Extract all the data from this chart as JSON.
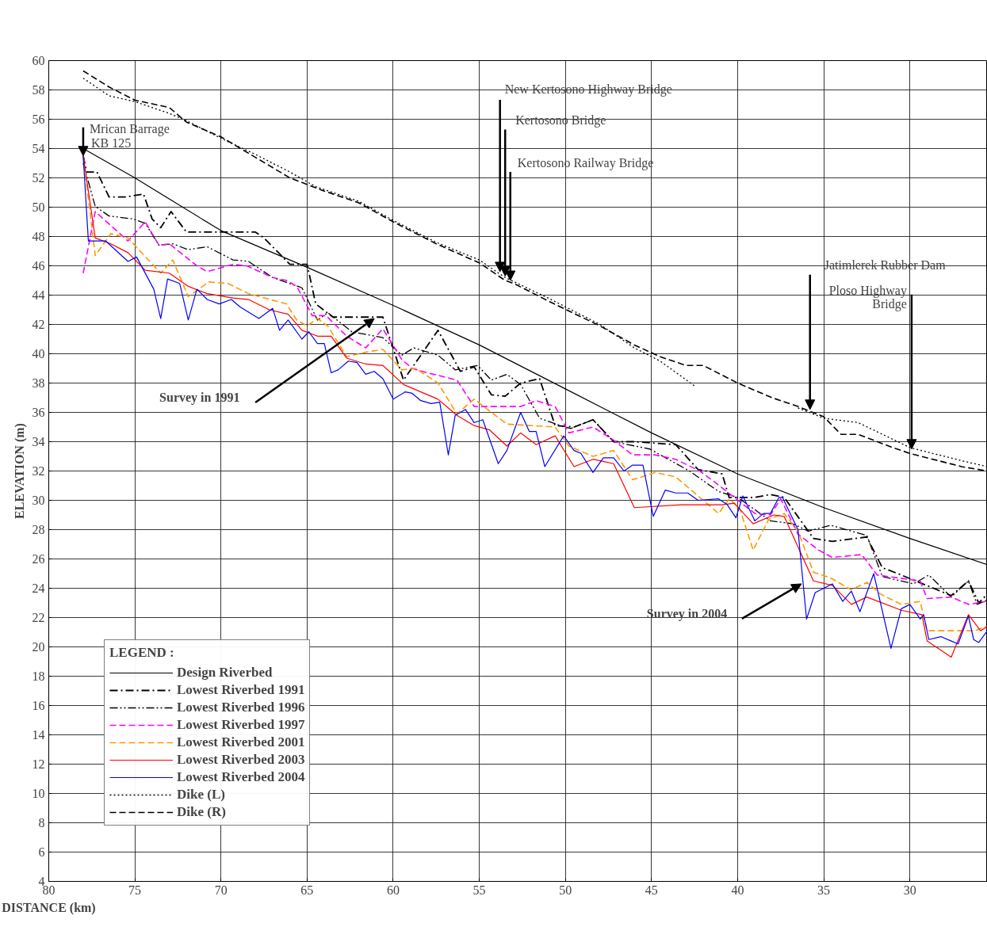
{
  "chart_data": {
    "type": "line",
    "xlabel": "DISTANCE (km)",
    "ylabel": "ELEVATION (m)",
    "legend_title": "LEGEND :",
    "xlim": [
      80,
      25.5
    ],
    "ylim": [
      4,
      60
    ],
    "xticks": [
      80,
      75,
      70,
      65,
      60,
      55,
      50,
      45,
      40,
      35,
      30
    ],
    "yticks": [
      4,
      6,
      8,
      10,
      12,
      14,
      16,
      18,
      20,
      22,
      24,
      26,
      28,
      30,
      32,
      34,
      36,
      38,
      40,
      42,
      44,
      46,
      48,
      50,
      52,
      54,
      56,
      58,
      60
    ],
    "grid": true,
    "legend": "bottom left",
    "marker": "none",
    "series": [
      {
        "name": "Design Riverbed",
        "color": "#000000",
        "line_style": "solid",
        "x": [
          78,
          75,
          70,
          65,
          60,
          55,
          50,
          45,
          40,
          35,
          30,
          25.5
        ],
        "values": [
          54,
          52,
          48.4,
          45.9,
          43.3,
          40.6,
          37.6,
          34.6,
          31.8,
          29.5,
          27.4,
          25.6
        ]
      },
      {
        "name": "Lowest Riverbed 1991",
        "color": "#000000",
        "line_style": "dashdot",
        "x": [
          78,
          77.8,
          77.2,
          76.5,
          75.5,
          74.5,
          74,
          73.5,
          72.9,
          72,
          68,
          67.5,
          66,
          65,
          64.5,
          63.5,
          60.6,
          59.4,
          57.4,
          56.1,
          55.3,
          54.3,
          53.5,
          52.6,
          51.5,
          50.6,
          49.5,
          48.4,
          47.2,
          46,
          43.6,
          42.3,
          40.9,
          40.5,
          39,
          38.1,
          37.3,
          35.6,
          34.5,
          32.5,
          31.6,
          30.7,
          27.6,
          26.6,
          26,
          25.5
        ],
        "values": [
          53.5,
          52.4,
          52.4,
          50.7,
          50.7,
          50.9,
          49.2,
          48.6,
          49.7,
          48.3,
          48.3,
          47.9,
          46.1,
          46.1,
          43.4,
          42.5,
          42.5,
          38.2,
          41.6,
          38.8,
          39.1,
          37.2,
          37.1,
          38,
          38.3,
          35.1,
          35,
          35.5,
          34,
          34,
          33.8,
          32.1,
          31.8,
          30.2,
          30.2,
          30.4,
          30.2,
          27.4,
          27.2,
          27.5,
          25.4,
          25,
          23.5,
          24.5,
          23,
          23.6
        ]
      },
      {
        "name": "Lowest Riverbed 1996",
        "color": "#000000",
        "line_style": "dashdotdot",
        "x": [
          78,
          77.3,
          76.5,
          75.1,
          74.4,
          73.6,
          72.8,
          71.9,
          70.8,
          69.3,
          68.4,
          67,
          65.3,
          64.4,
          63.8,
          62.4,
          60.6,
          59.5,
          58.8,
          57.4,
          56.4,
          55.1,
          54.3,
          53.4,
          52.6,
          51.5,
          50.3,
          49.7,
          48.4,
          47.2,
          45.1,
          42.8,
          41.1,
          40,
          38.1,
          36.8,
          35.9,
          34.6,
          32.5,
          31.6,
          29.8,
          28.9,
          27.6,
          26.6,
          26.1,
          25.5
        ],
        "values": [
          53,
          50.05,
          49.4,
          49.2,
          48.9,
          47.4,
          47.5,
          47.1,
          47.3,
          46.4,
          46.3,
          45.2,
          44.5,
          42.3,
          42.8,
          41.5,
          41.1,
          39.9,
          40.4,
          39.9,
          38.9,
          39.2,
          38.2,
          38.6,
          37.9,
          35.6,
          35.1,
          34.9,
          35.5,
          34,
          33.5,
          32,
          30.6,
          30.2,
          28.6,
          28.4,
          27.9,
          28.3,
          27.6,
          24.8,
          24.3,
          24.9,
          23.4,
          24.5,
          22.9,
          23.2
        ]
      },
      {
        "name": "Lowest Riverbed 1997",
        "color": "#ff00ff",
        "line_style": "dashed",
        "x": [
          78,
          77.3,
          75.4,
          74.4,
          73.6,
          73,
          71.4,
          70.8,
          69.3,
          68.5,
          67,
          66.2,
          65.6,
          64.7,
          63.9,
          62.7,
          61.6,
          60.6,
          59.5,
          58.9,
          58,
          56.3,
          55.3,
          52.6,
          51.7,
          50.6,
          49.8,
          48.4,
          47.2,
          46.1,
          44.8,
          43.6,
          42.2,
          41.4,
          40.2,
          39,
          38.1,
          37.5,
          36.5,
          35.3,
          34.5,
          32.8,
          31.9,
          29.4,
          29,
          27.6,
          26.6,
          25.6
        ],
        "values": [
          45.5,
          49.7,
          47.7,
          49,
          47.4,
          47.5,
          46,
          45.6,
          46.1,
          46,
          45.2,
          45,
          44.6,
          42.6,
          42.6,
          41.2,
          40.4,
          41.7,
          39.6,
          39,
          38.7,
          38.2,
          36.4,
          36.4,
          36.8,
          36.4,
          34.6,
          35,
          34.1,
          33.1,
          33.1,
          32.8,
          32,
          31.3,
          30.2,
          29.1,
          29,
          30.1,
          27.7,
          26.6,
          26.1,
          26.3,
          24.9,
          24.5,
          23.3,
          23.4,
          22.9,
          23.1
        ]
      },
      {
        "name": "Lowest Riverbed 2001",
        "color": "#ff9900",
        "line_style": "dashed",
        "x": [
          78,
          77.3,
          76.4,
          75.4,
          73.5,
          72.8,
          71.9,
          70.7,
          69.6,
          68.4,
          66.2,
          65.6,
          65,
          64.4,
          63.8,
          62.7,
          61.6,
          60.6,
          59.5,
          58.7,
          57.4,
          56.3,
          55.3,
          53.4,
          50.6,
          49.8,
          48.4,
          47.2,
          46.1,
          44.8,
          43.6,
          41.9,
          41.1,
          40.5,
          39.9,
          39.1,
          38.2,
          37.3,
          36.5,
          35.6,
          34.6,
          33.4,
          32.5,
          31.7,
          30.5,
          29.4,
          29,
          26.2,
          25.6
        ],
        "values": [
          53.5,
          46.7,
          48.2,
          47.9,
          45.5,
          46.4,
          43.9,
          44.9,
          44.8,
          44.1,
          43.4,
          42.3,
          41.9,
          42.4,
          41.9,
          39.8,
          40.1,
          40.3,
          38.9,
          39,
          38,
          35.9,
          36.9,
          35.2,
          35,
          33.7,
          33,
          33.4,
          31.4,
          31.9,
          31.6,
          29.9,
          29.1,
          30.1,
          29.5,
          26.6,
          28.7,
          29.1,
          27.9,
          25.1,
          24.7,
          23.9,
          24.4,
          23.6,
          22.9,
          23.1,
          21.1,
          21.1,
          21.4
        ]
      },
      {
        "name": "Lowest Riverbed 2003",
        "color": "#ff0000",
        "line_style": "solid",
        "x": [
          78,
          77.3,
          76.4,
          75.4,
          74.4,
          73,
          71.9,
          70.8,
          69.3,
          68.4,
          67.2,
          66.1,
          65.3,
          64.4,
          63.6,
          62.7,
          61.6,
          60.6,
          59.4,
          57.4,
          56.3,
          55.3,
          54.4,
          53.4,
          52.6,
          51.7,
          50.6,
          49.5,
          48.4,
          47.2,
          46,
          43.3,
          40.9,
          40.2,
          39.1,
          37.9,
          37.3,
          35.6,
          34.5,
          33.4,
          32.5,
          30.5,
          29.3,
          29,
          27.6,
          26.6,
          25.9,
          25.5
        ],
        "values": [
          53.5,
          47.9,
          47.5,
          46.9,
          45.7,
          45.5,
          44.6,
          44.1,
          43.8,
          43.7,
          43,
          42.7,
          41.6,
          41.2,
          41.2,
          39.7,
          39.3,
          39.2,
          37.9,
          36.9,
          35.8,
          35.1,
          34.8,
          33.7,
          34.6,
          33.8,
          34.4,
          32.3,
          32.8,
          32.5,
          29.5,
          29.7,
          29.7,
          29.8,
          28.4,
          29,
          28.9,
          24.5,
          24.2,
          22.9,
          23.4,
          22.5,
          22.2,
          20.4,
          19.3,
          22.2,
          21.1,
          21.4
        ]
      },
      {
        "name": "Lowest Riverbed 2004",
        "color": "#0000ff",
        "line_style": "solid",
        "x": [
          78,
          77.7,
          76.7,
          75.4,
          74.9,
          73.9,
          73.5,
          73.1,
          72.4,
          71.9,
          71.4,
          70.8,
          70.1,
          69.4,
          68.9,
          67.8,
          67,
          66.6,
          66.1,
          65.3,
          64.9,
          64.4,
          64,
          63.6,
          63.2,
          62.6,
          62.1,
          61.6,
          61.1,
          60.6,
          60,
          59.3,
          58.9,
          58.4,
          57.8,
          57.3,
          56.8,
          56.4,
          55.8,
          55.3,
          54.8,
          53.9,
          53.4,
          52.6,
          52.1,
          51.7,
          51.2,
          50.1,
          49.5,
          49.1,
          48.4,
          47.8,
          47.2,
          46.6,
          46.1,
          45.5,
          44.9,
          44.2,
          43.6,
          42.9,
          42.3,
          41.1,
          40.6,
          40.1,
          39.7,
          39,
          38.5,
          38.1,
          37.6,
          37.4,
          36.5,
          36,
          35.5,
          34.5,
          33.9,
          33.4,
          32.9,
          32.1,
          31.1,
          30.5,
          30,
          29.4,
          29.2,
          28.9,
          28.2,
          27.6,
          27.2,
          26.6,
          26.3,
          26,
          25.5
        ],
        "values": [
          53.5,
          47.7,
          47.7,
          46.3,
          46.6,
          44.4,
          42.4,
          45.1,
          44.8,
          42.3,
          44.4,
          43.7,
          43.4,
          43.7,
          43.2,
          42.4,
          43.1,
          41.6,
          42.3,
          41,
          41.5,
          40.7,
          40.7,
          38.7,
          38.9,
          39.5,
          39.4,
          38.6,
          38.8,
          38.3,
          36.9,
          37.4,
          37.3,
          36.8,
          36.6,
          36.7,
          33.1,
          35.8,
          36.2,
          35.3,
          35.5,
          32.5,
          33.4,
          36,
          34.7,
          34.7,
          32.3,
          34.4,
          33.4,
          33.2,
          31.9,
          32.9,
          32.9,
          32,
          32.4,
          32.4,
          28.9,
          30.7,
          30.5,
          30.5,
          30,
          30.1,
          29.7,
          28.8,
          30.3,
          28.6,
          29.1,
          29.1,
          30.2,
          30.2,
          28,
          21.9,
          23.7,
          24.3,
          23.1,
          23.8,
          22.4,
          25,
          19.9,
          22.6,
          22.9,
          21.9,
          22.2,
          20.5,
          20.7,
          20.4,
          20.2,
          22.1,
          20.5,
          20.3,
          21.1
        ]
      },
      {
        "name": "Dike (L)",
        "color": "#000000",
        "line_style": "dotted",
        "x": [
          78,
          76.5,
          75,
          73,
          72,
          70,
          68,
          66,
          64.5,
          62,
          60,
          57.5,
          55,
          53.5,
          51,
          48,
          46,
          44.5,
          42.5,
          40,
          36.5,
          35,
          33,
          30,
          27,
          25.5
        ],
        "values": [
          58.8,
          57.6,
          57.2,
          56.4,
          55.9,
          54.7,
          53.6,
          52.4,
          51.4,
          50.4,
          49.1,
          47.6,
          46.4,
          45.2,
          43.8,
          42,
          40.4,
          39.5,
          37.8,
          null,
          36.3,
          35.6,
          35.3,
          33.6,
          32.7,
          32.3
        ]
      },
      {
        "name": "Dike (R)",
        "color": "#000000",
        "line_style": "dashed",
        "x": [
          78,
          76.5,
          75,
          73,
          72,
          70,
          68,
          66,
          64,
          62,
          60,
          57.5,
          55,
          53.5,
          53,
          51,
          48,
          46,
          44.5,
          43,
          42,
          40,
          38,
          36.5,
          35,
          34,
          33,
          31,
          30,
          27,
          25.5
        ],
        "values": [
          59.3,
          58.2,
          57.3,
          56.8,
          55.8,
          54.8,
          53.4,
          52,
          51.1,
          50.3,
          49,
          47.5,
          46.2,
          45,
          44.8,
          43.6,
          41.9,
          40.6,
          39.8,
          39.2,
          39.2,
          38,
          37,
          36.4,
          35.7,
          34.5,
          34.5,
          33.6,
          33.2,
          32.3,
          32
        ]
      }
    ],
    "annotations": [
      {
        "text": "Mrican Barrage",
        "x": 78,
        "y": 53.5
      },
      {
        "text": "KB 125",
        "x": 78,
        "y": 53.5
      },
      {
        "text": "New Kertosono Highway Bridge",
        "x": 53.8,
        "y": 45.6
      },
      {
        "text": "Kertosono Bridge",
        "x": 53.5,
        "y": 45.3
      },
      {
        "text": "Kertosono Railway Bridge",
        "x": 53.2,
        "y": 45.0
      },
      {
        "text": "Jatimlerek Rubber Dam",
        "x": 35.8,
        "y": 36.2
      },
      {
        "text": "Ploso Highway Bridge",
        "x": 29.9,
        "y": 33.5
      },
      {
        "text": "Survey in 1991",
        "x": 61.1,
        "y": 42.4
      },
      {
        "text": "Survey in 2004",
        "x": 36.3,
        "y": 24.3
      }
    ]
  }
}
